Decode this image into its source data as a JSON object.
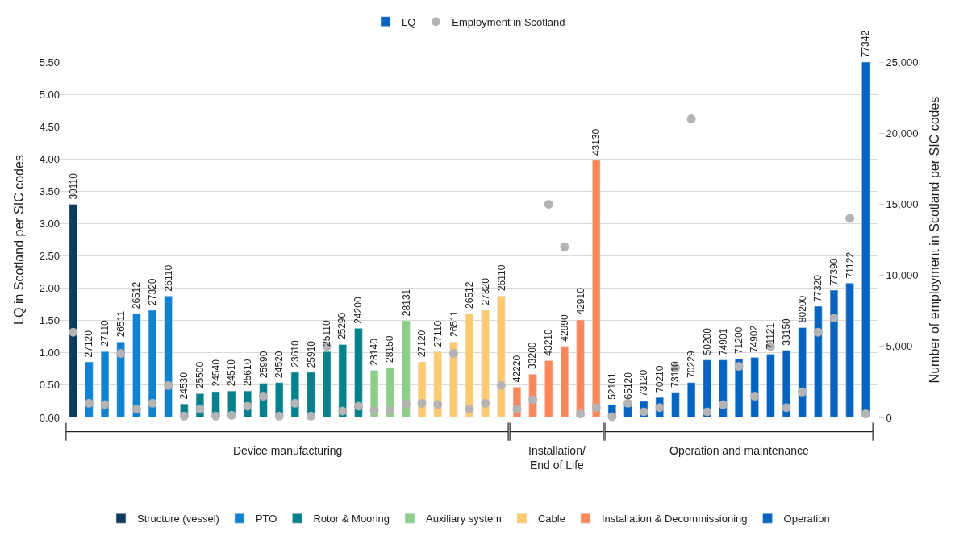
{
  "chart_data": {
    "type": "bar",
    "ylabel": "LQ in Scotland per SIC codes",
    "y2label": "Number of employment in Scotland per SIC codes",
    "categories": [
      "30110",
      "27120",
      "27110",
      "26511",
      "26512",
      "27320",
      "26110",
      "24530",
      "25500",
      "24540",
      "24510",
      "25610",
      "25990",
      "24520",
      "23610",
      "25910",
      "25110",
      "25290",
      "24200",
      "28140",
      "28150",
      "28131",
      "27120",
      "27110",
      "26511",
      "26512",
      "27320",
      "26110",
      "42220",
      "33200",
      "43210",
      "42990",
      "42910",
      "43130",
      "52101",
      "65120",
      "73120",
      "70210",
      "73110",
      "70229",
      "50200",
      "74901",
      "71200",
      "74902",
      "71121",
      "33150",
      "80200",
      "77320",
      "77390",
      "71122",
      "77342"
    ],
    "series": [
      {
        "name": "Structure (vessel)",
        "color": "#0b3c5d",
        "values": [
          3.3,
          null,
          null,
          null,
          null,
          null,
          null,
          null,
          null,
          null,
          null,
          null,
          null,
          null,
          null,
          null,
          null,
          null,
          null,
          null,
          null,
          null,
          null,
          null,
          null,
          null,
          null,
          null,
          null,
          null,
          null,
          null,
          null,
          null,
          null,
          null,
          null,
          null,
          null,
          null,
          null,
          null,
          null,
          null,
          null,
          null,
          null,
          null,
          null,
          null,
          null
        ]
      },
      {
        "name": "PTO",
        "color": "#0f82d4",
        "values": [
          null,
          0.86,
          1.02,
          1.17,
          1.61,
          1.66,
          1.88,
          null,
          null,
          null,
          null,
          null,
          null,
          null,
          null,
          null,
          null,
          null,
          null,
          null,
          null,
          null,
          null,
          null,
          null,
          null,
          null,
          null,
          null,
          null,
          null,
          null,
          null,
          null,
          null,
          null,
          null,
          null,
          null,
          null,
          null,
          null,
          null,
          null,
          null,
          null,
          null,
          null,
          null,
          null,
          null
        ]
      },
      {
        "name": "Rotor & Mooring",
        "color": "#06808a",
        "values": [
          null,
          null,
          null,
          null,
          null,
          null,
          null,
          0.21,
          0.37,
          0.4,
          0.41,
          0.41,
          0.53,
          0.54,
          0.7,
          0.7,
          1.02,
          1.13,
          1.38,
          null,
          null,
          null,
          null,
          null,
          null,
          null,
          null,
          null,
          null,
          null,
          null,
          null,
          null,
          null,
          null,
          null,
          null,
          null,
          null,
          null,
          null,
          null,
          null,
          null,
          null,
          null,
          null,
          null,
          null,
          null,
          null
        ]
      },
      {
        "name": "Auxiliary system",
        "color": "#8fce8a",
        "values": [
          null,
          null,
          null,
          null,
          null,
          null,
          null,
          null,
          null,
          null,
          null,
          null,
          null,
          null,
          null,
          null,
          null,
          null,
          null,
          0.73,
          0.77,
          1.5,
          null,
          null,
          null,
          null,
          null,
          null,
          null,
          null,
          null,
          null,
          null,
          null,
          null,
          null,
          null,
          null,
          null,
          null,
          null,
          null,
          null,
          null,
          null,
          null,
          null,
          null,
          null,
          null,
          null
        ]
      },
      {
        "name": "Cable",
        "color": "#fdca70",
        "values": [
          null,
          null,
          null,
          null,
          null,
          null,
          null,
          null,
          null,
          null,
          null,
          null,
          null,
          null,
          null,
          null,
          null,
          null,
          null,
          null,
          null,
          null,
          0.86,
          1.02,
          1.17,
          1.61,
          1.66,
          1.88,
          null,
          null,
          null,
          null,
          null,
          null,
          null,
          null,
          null,
          null,
          null,
          null,
          null,
          null,
          null,
          null,
          null,
          null,
          null,
          null,
          null,
          null,
          null
        ]
      },
      {
        "name": "Installation & Decommissioning",
        "color": "#fd8758",
        "values": [
          null,
          null,
          null,
          null,
          null,
          null,
          null,
          null,
          null,
          null,
          null,
          null,
          null,
          null,
          null,
          null,
          null,
          null,
          null,
          null,
          null,
          null,
          null,
          null,
          null,
          null,
          null,
          null,
          0.47,
          0.67,
          0.88,
          1.1,
          1.51,
          3.98,
          null,
          null,
          null,
          null,
          null,
          null,
          null,
          null,
          null,
          null,
          null,
          null,
          null,
          null,
          null,
          null,
          null
        ]
      },
      {
        "name": "Operation",
        "color": "#0563c1",
        "values": [
          null,
          null,
          null,
          null,
          null,
          null,
          null,
          null,
          null,
          null,
          null,
          null,
          null,
          null,
          null,
          null,
          null,
          null,
          null,
          null,
          null,
          null,
          null,
          null,
          null,
          null,
          null,
          null,
          null,
          null,
          null,
          null,
          null,
          null,
          0.2,
          0.2,
          0.25,
          0.31,
          0.39,
          0.54,
          0.89,
          0.89,
          0.91,
          0.93,
          0.98,
          1.04,
          1.39,
          1.72,
          1.97,
          2.08,
          5.5
        ]
      },
      {
        "name": "LQ",
        "color": "#0563c1",
        "values": [
          null,
          null,
          null,
          null,
          null,
          null,
          null,
          null,
          null,
          null,
          null,
          null,
          null,
          null,
          null,
          null,
          null,
          null,
          null,
          null,
          null,
          null,
          null,
          null,
          null,
          null,
          null,
          null,
          null,
          null,
          null,
          null,
          null,
          null,
          null,
          null,
          null,
          null,
          null,
          null,
          null,
          null,
          null,
          null,
          null,
          null,
          null,
          null,
          null,
          null,
          null
        ]
      },
      {
        "name": "Employment in Scotland",
        "type": "scatter",
        "axis": "y2",
        "color": "#b4b4b4",
        "values": [
          6000,
          1000,
          900,
          4500,
          600,
          1000,
          2250,
          100,
          600,
          100,
          150,
          800,
          1500,
          100,
          1000,
          100,
          5000,
          450,
          800,
          500,
          500,
          950,
          1000,
          900,
          4500,
          600,
          1000,
          2250,
          600,
          1250,
          15000,
          12000,
          250,
          700,
          50,
          1000,
          400,
          700,
          3500,
          21000,
          400,
          900,
          3600,
          1500,
          5000,
          700,
          1800,
          6000,
          7000,
          14000,
          250
        ]
      }
    ],
    "ylim": [
      0,
      5.5
    ],
    "yticks": [
      {
        "value": 0,
        "label": "0.00"
      },
      {
        "value": 0.5,
        "label": "0.50"
      },
      {
        "value": 1,
        "label": "1.00"
      },
      {
        "value": 1.5,
        "label": "1.50"
      },
      {
        "value": 2,
        "label": "2.00"
      },
      {
        "value": 2.5,
        "label": "2.50"
      },
      {
        "value": 3,
        "label": "3.00"
      },
      {
        "value": 3.5,
        "label": "3.50"
      },
      {
        "value": 4,
        "label": "4.00"
      },
      {
        "value": 4.5,
        "label": "4.50"
      },
      {
        "value": 5,
        "label": "5.00"
      },
      {
        "value": 5.5,
        "label": "5.50"
      }
    ],
    "y2lim": [
      0,
      25000
    ],
    "y2ticks": [
      0,
      {
        "value": 5000,
        "label": "5,000"
      },
      {
        "value": 10000,
        "label": "10,000"
      },
      {
        "value": 15000,
        "label": "15,000"
      },
      {
        "value": 20000,
        "label": "20,000"
      },
      {
        "value": 25000,
        "label": "25,000"
      }
    ],
    "annotations": [
      "Device manufacturing",
      "Installation/\nEnd of Life",
      "Operation and maintenance"
    ],
    "grid": "y",
    "marker": "circle",
    "legend": "bottom"
  }
}
